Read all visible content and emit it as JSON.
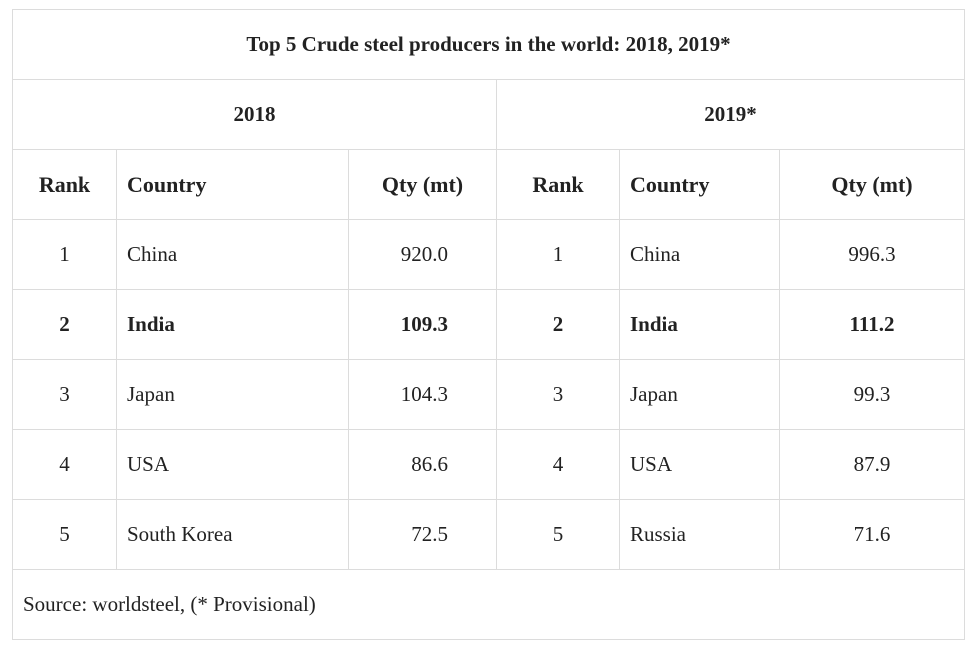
{
  "title": "Top 5 Crude steel producers in the world: 2018, 2019*",
  "years": [
    "2018",
    "2019*"
  ],
  "columns": [
    "Rank",
    "Country",
    "Qty (mt)"
  ],
  "rows": [
    {
      "r2018": "1",
      "c2018": "China",
      "q2018": "920.0",
      "r2019": "1",
      "c2019": "China",
      "q2019": "996.3",
      "bold": false
    },
    {
      "r2018": "2",
      "c2018": "India",
      "q2018": "109.3",
      "r2019": "2",
      "c2019": "India",
      "q2019": "111.2",
      "bold": true
    },
    {
      "r2018": "3",
      "c2018": "Japan",
      "q2018": "104.3",
      "r2019": "3",
      "c2019": "Japan",
      "q2019": "99.3",
      "bold": false
    },
    {
      "r2018": "4",
      "c2018": "USA",
      "q2018": "86.6",
      "r2019": "4",
      "c2019": "USA",
      "q2019": "87.9",
      "bold": false
    },
    {
      "r2018": "5",
      "c2018": "South Korea",
      "q2018": "72.5",
      "r2019": "5",
      "c2019": "Russia",
      "q2019": "71.6",
      "bold": false
    }
  ],
  "source": "Source: worldsteel, (* Provisional)"
}
